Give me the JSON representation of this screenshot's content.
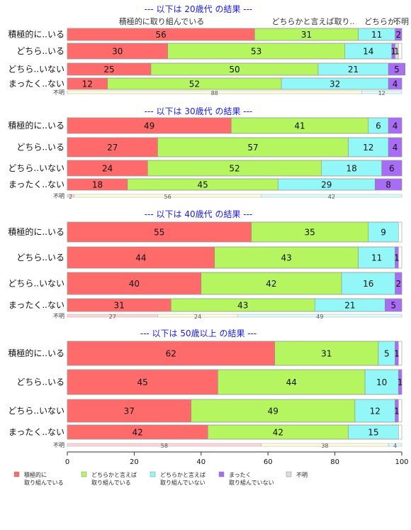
{
  "chart_data": {
    "type": "bar",
    "orientation": "horizontal-stacked-percent",
    "xlim": [
      0,
      100
    ],
    "xticks": [
      0,
      20,
      40,
      60,
      80,
      100
    ],
    "colors": [
      "#ff6b6b",
      "#b5f55f",
      "#93f7f7",
      "#a86cf5",
      "#dcdcdc"
    ],
    "header_labels": [
      "積極的に取り組んでいる",
      "どちらかと言えば取り..",
      "どちらか..",
      "不明"
    ],
    "legend": [
      {
        "line1": "積極的に",
        "line2": "取り組んでいる"
      },
      {
        "line1": "どちらかと言えば",
        "line2": "取り組んでいる"
      },
      {
        "line1": "どちらかと言えば",
        "line2": "取り組んでいない"
      },
      {
        "line1": "まったく",
        "line2": "取り組んでいない"
      },
      {
        "line1": "不明",
        "line2": ""
      }
    ],
    "panels": [
      {
        "title": "--- 以下は 20歳代 の結果 ---",
        "categories": [
          "積極的に..いる",
          "どちら..いる",
          "どちら..いない",
          "まったく..ない"
        ],
        "values": [
          [
            56,
            31,
            11,
            2,
            0
          ],
          [
            30,
            53,
            14,
            1,
            1
          ],
          [
            25,
            50,
            21,
            5,
            0
          ],
          [
            12,
            52,
            32,
            4,
            0
          ]
        ],
        "unknown_label": "不明",
        "unknown_bar": [
          0,
          88,
          12
        ]
      },
      {
        "title": "--- 以下は 30歳代 の結果 ---",
        "categories": [
          "積極的に..いる",
          "どちら..いる",
          "どちら..いない",
          "まったく..ない"
        ],
        "values": [
          [
            49,
            41,
            6,
            4,
            0
          ],
          [
            27,
            57,
            12,
            4,
            0
          ],
          [
            24,
            52,
            18,
            6,
            0
          ],
          [
            18,
            45,
            29,
            8,
            0
          ]
        ],
        "unknown_label": "不明",
        "unknown_bar": [
          2,
          56,
          42
        ]
      },
      {
        "title": "--- 以下は 40歳代 の結果 ---",
        "categories": [
          "積極的に..いる",
          "どちら..いる",
          "どちら..いない",
          "まったく..ない"
        ],
        "values": [
          [
            55,
            35,
            9,
            0,
            0
          ],
          [
            44,
            43,
            11,
            1,
            0
          ],
          [
            40,
            42,
            16,
            2,
            0
          ],
          [
            31,
            43,
            21,
            5,
            0
          ]
        ],
        "unknown_label": "不明",
        "unknown_bar": [
          27,
          24,
          49
        ]
      },
      {
        "title": "--- 以下は 50歳以上 の結果 ---",
        "categories": [
          "積極的に..いる",
          "どちら..いる",
          "どちら..いない",
          "まったく..ない"
        ],
        "values": [
          [
            62,
            31,
            5,
            1,
            0
          ],
          [
            45,
            44,
            10,
            1,
            0
          ],
          [
            37,
            49,
            12,
            1,
            0
          ],
          [
            42,
            42,
            15,
            0,
            0
          ]
        ],
        "unknown_label": "不明",
        "unknown_bar": [
          58,
          38,
          4
        ]
      }
    ]
  }
}
